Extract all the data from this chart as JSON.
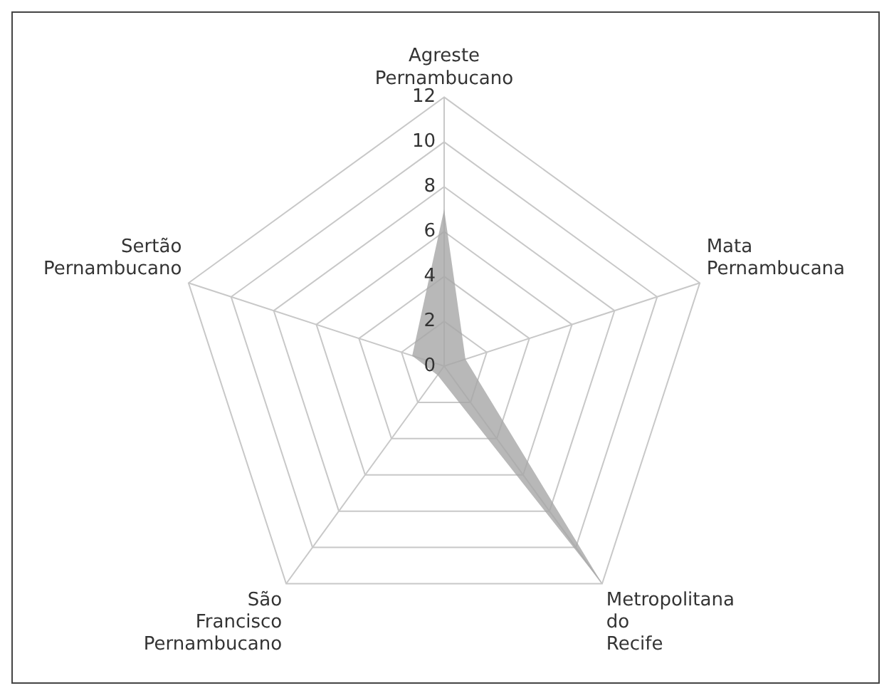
{
  "chart_data": {
    "type": "radar",
    "categories": [
      "Agreste Pernambucano",
      "Mata Pernambucana",
      "Metropolitana do Recife",
      "São Francisco Pernambucano",
      "Sertão Pernambucano"
    ],
    "series": [
      {
        "color": "#a6a6a6",
        "values": [
          7,
          1,
          12,
          0.5,
          1.5
        ]
      }
    ],
    "ylim": [
      0,
      12
    ],
    "yticks": [
      0,
      2,
      4,
      6,
      8,
      10,
      12
    ],
    "grid": true,
    "legend": false
  }
}
